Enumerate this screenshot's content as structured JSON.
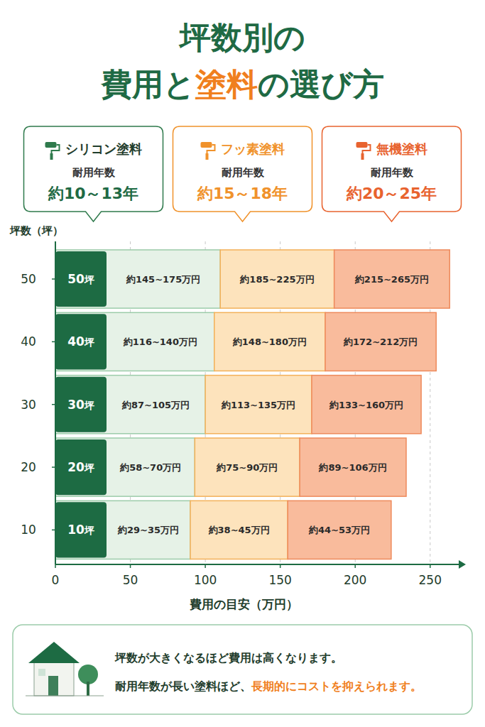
{
  "title": {
    "lines": [
      "坪数別の",
      "費用と塗料の選び方"
    ],
    "highlight": "塗料"
  },
  "chart_data": {
    "type": "bar",
    "orientation": "horizontal",
    "stacked": true,
    "grid": true,
    "legend": "top",
    "x_label": "費用の目安（万円）",
    "y_label": "坪数（坪）",
    "categories": [
      "10坪",
      "20坪",
      "30坪",
      "40坪",
      "50坪"
    ],
    "y": [
      10,
      20,
      30,
      40,
      50
    ],
    "xlim": [
      0,
      270
    ],
    "xticks": [
      0,
      50,
      100,
      150,
      200,
      250
    ],
    "ylim": [
      4.5,
      56
    ],
    "yticks": [
      10,
      20,
      30,
      40,
      50
    ],
    "legend_subtitle": "耐用年数",
    "series": [
      {
        "name": "シリコン塗料",
        "color": "#e6f2e7",
        "durability": "約10～13年",
        "values": [
          90,
          93,
          100,
          106,
          110
        ],
        "labels": [
          "約29~35万円",
          "約58~70万円",
          "約87~105万円",
          "約116~140万円",
          "約145~175万円"
        ]
      },
      {
        "name": "フッ素塗料",
        "color": "#fde3bc",
        "durability": "約15～18年",
        "values": [
          65,
          70,
          71,
          74,
          76
        ],
        "labels": [
          "約38~45万円",
          "約75~90万円",
          "約113~135万円",
          "約148~180万円",
          "約185~225万円"
        ]
      },
      {
        "name": "無機塗料",
        "color": "#f9bb9c",
        "durability": "約20～25年",
        "values": [
          69,
          71,
          73,
          74,
          77
        ],
        "labels": [
          "約44~53万円",
          "約89~106万円",
          "約133~160万円",
          "約172~212万円",
          "約215~265万円"
        ]
      }
    ]
  },
  "note": {
    "lines": [
      "坪数が大きくなるほど費用は高くなります。",
      "耐用年数が長い塗料ほど、長期的にコストを抑えられます。"
    ],
    "highlight": "長期的にコストを抑えられます。"
  }
}
